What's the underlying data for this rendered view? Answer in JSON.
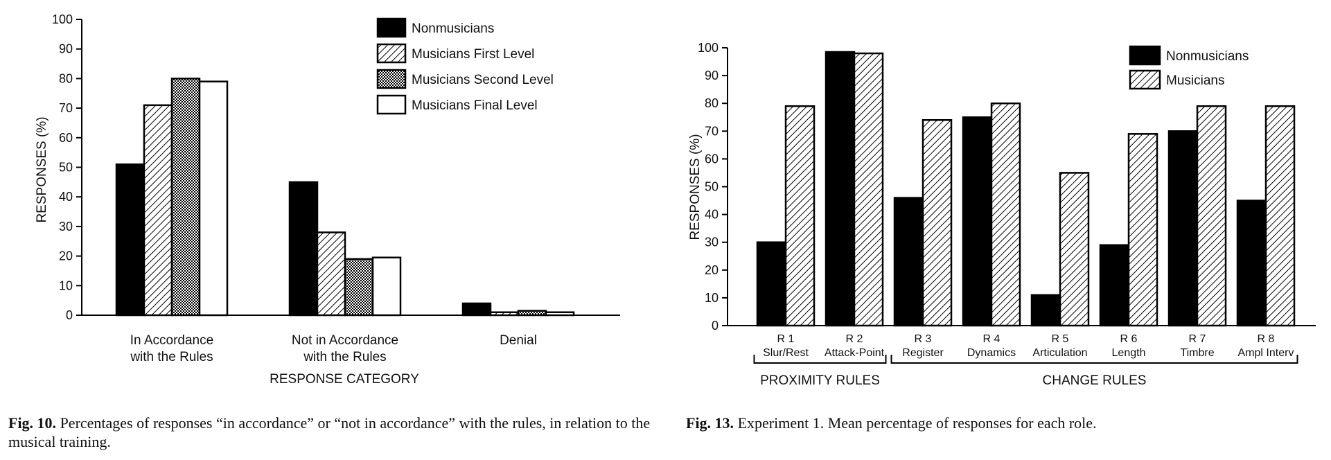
{
  "chart_data": [
    {
      "type": "bar",
      "title": "",
      "xlabel": "RESPONSE CATEGORY",
      "ylabel": "RESPONSES (%)",
      "ylim": [
        0,
        100
      ],
      "yticks": [
        "0",
        "10",
        "20",
        "30",
        "40",
        "50",
        "60",
        "70",
        "80",
        "90",
        "100"
      ],
      "categories": [
        [
          "In Accordance",
          "with the Rules"
        ],
        [
          "Not in Accordance",
          "with the Rules"
        ],
        [
          "Denial"
        ]
      ],
      "series": [
        {
          "name": "Nonmusicians",
          "pattern": "solid",
          "values": [
            51,
            45,
            4
          ]
        },
        {
          "name": "Musicians First Level",
          "pattern": "hatch",
          "values": [
            71,
            28,
            1
          ]
        },
        {
          "name": "Musicians Second Level",
          "pattern": "dots",
          "values": [
            80,
            19,
            1.5
          ]
        },
        {
          "name": "Musicians Final Level",
          "pattern": "white",
          "values": [
            79,
            19.5,
            1
          ]
        }
      ],
      "legend_position": "top-right",
      "grid": false
    },
    {
      "type": "bar",
      "title": "",
      "xlabel": "",
      "ylabel": "RESPONSES (%)",
      "ylim": [
        0,
        100
      ],
      "yticks": [
        "0",
        "10",
        "20",
        "30",
        "40",
        "50",
        "60",
        "70",
        "80",
        "90",
        "100"
      ],
      "categories": [
        [
          "R 1",
          "Slur/Rest"
        ],
        [
          "R 2",
          "Attack-Point"
        ],
        [
          "R 3",
          "Register"
        ],
        [
          "R 4",
          "Dynamics"
        ],
        [
          "R 5",
          "Articulation"
        ],
        [
          "R 6",
          "Length"
        ],
        [
          "R 7",
          "Timbre"
        ],
        [
          "R 8",
          "Ampl Interv"
        ]
      ],
      "groups": [
        {
          "label": "PROXIMITY RULES",
          "span": [
            0,
            1
          ]
        },
        {
          "label": "CHANGE RULES",
          "span": [
            2,
            7
          ]
        }
      ],
      "series": [
        {
          "name": "Nonmusicians",
          "pattern": "solid",
          "values": [
            30,
            98.5,
            46,
            75,
            11,
            29,
            70,
            45
          ]
        },
        {
          "name": "Musicians",
          "pattern": "hatch",
          "values": [
            79,
            98,
            74,
            80,
            55,
            69,
            79,
            79
          ]
        }
      ],
      "legend_position": "top-right",
      "grid": false
    }
  ],
  "captions": {
    "fig10_label": "Fig. 10.",
    "fig10_text": "Percentages of responses “in accordance” or “not in accordance” with the rules, in relation to the musical training.",
    "fig13_label": "Fig. 13.",
    "fig13_text": "Experiment 1. Mean percentage of responses for each role."
  }
}
